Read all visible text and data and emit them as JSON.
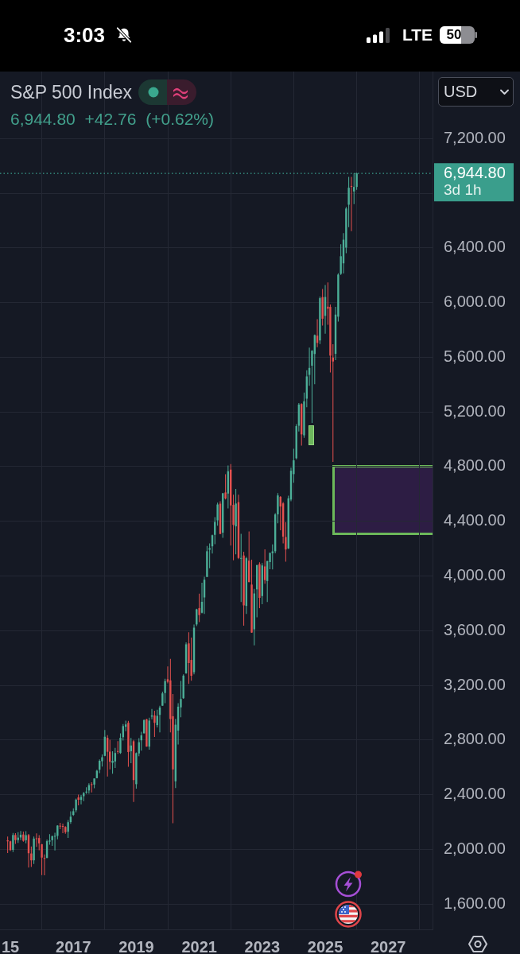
{
  "chart_data": {
    "type": "candlestick",
    "title": "S&P 500 Index",
    "subtitle": "6,944.80 +42.76 (+0.62%)",
    "x": [
      "2014-12",
      "2015-01",
      "2015-02",
      "2015-03",
      "2015-04",
      "2015-05",
      "2015-06",
      "2015-07",
      "2015-08",
      "2015-09",
      "2015-10",
      "2015-11",
      "2015-12",
      "2016-01",
      "2016-02",
      "2016-03",
      "2016-04",
      "2016-05",
      "2016-06",
      "2016-07",
      "2016-08",
      "2016-09",
      "2016-10",
      "2016-11",
      "2016-12",
      "2017-01",
      "2017-02",
      "2017-03",
      "2017-04",
      "2017-05",
      "2017-06",
      "2017-07",
      "2017-08",
      "2017-09",
      "2017-10",
      "2017-11",
      "2017-12",
      "2018-01",
      "2018-02",
      "2018-03",
      "2018-04",
      "2018-05",
      "2018-06",
      "2018-07",
      "2018-08",
      "2018-09",
      "2018-10",
      "2018-11",
      "2018-12",
      "2019-01",
      "2019-02",
      "2019-03",
      "2019-04",
      "2019-05",
      "2019-06",
      "2019-07",
      "2019-08",
      "2019-09",
      "2019-10",
      "2019-11",
      "2019-12",
      "2020-01",
      "2020-02",
      "2020-03",
      "2020-04",
      "2020-05",
      "2020-06",
      "2020-07",
      "2020-08",
      "2020-09",
      "2020-10",
      "2020-11",
      "2020-12",
      "2021-01",
      "2021-02",
      "2021-03",
      "2021-04",
      "2021-05",
      "2021-06",
      "2021-07",
      "2021-08",
      "2021-09",
      "2021-10",
      "2021-11",
      "2021-12",
      "2022-01",
      "2022-02",
      "2022-03",
      "2022-04",
      "2022-05",
      "2022-06",
      "2022-07",
      "2022-08",
      "2022-09",
      "2022-10",
      "2022-11",
      "2022-12",
      "2023-01",
      "2023-02",
      "2023-03",
      "2023-04",
      "2023-05",
      "2023-06",
      "2023-07",
      "2023-08",
      "2023-09",
      "2023-10",
      "2023-11",
      "2023-12",
      "2024-01",
      "2024-02",
      "2024-03",
      "2024-04",
      "2024-05",
      "2024-06",
      "2024-07",
      "2024-08",
      "2024-09",
      "2024-10",
      "2024-11",
      "2024-12",
      "2025-01",
      "2025-02",
      "2025-03",
      "2025-04",
      "2025-05",
      "2025-06",
      "2025-07",
      "2025-08",
      "2025-09",
      "2025-10",
      "2025-11",
      "2025-12",
      "2026-01"
    ],
    "ohlc": [
      [
        2066,
        2094,
        1973,
        2059
      ],
      [
        2059,
        2064,
        1988,
        1995
      ],
      [
        1997,
        2120,
        1981,
        2105
      ],
      [
        2105,
        2118,
        2040,
        2068
      ],
      [
        2068,
        2126,
        2048,
        2086
      ],
      [
        2087,
        2135,
        2068,
        2107
      ],
      [
        2109,
        2130,
        2056,
        2063
      ],
      [
        2067,
        2133,
        2044,
        2104
      ],
      [
        2105,
        2113,
        1867,
        1972
      ],
      [
        1970,
        2021,
        1872,
        1920
      ],
      [
        1920,
        2094,
        1894,
        2079
      ],
      [
        2081,
        2117,
        2019,
        2080
      ],
      [
        2083,
        2104,
        1993,
        2044
      ],
      [
        2038,
        2038,
        1812,
        1940
      ],
      [
        1937,
        1963,
        1810,
        1932
      ],
      [
        1937,
        2072,
        1937,
        2060
      ],
      [
        2057,
        2111,
        2034,
        2065
      ],
      [
        2067,
        2100,
        2026,
        2097
      ],
      [
        2094,
        2121,
        1992,
        2099
      ],
      [
        2099,
        2177,
        2074,
        2174
      ],
      [
        2173,
        2194,
        2148,
        2171
      ],
      [
        2171,
        2188,
        2119,
        2168
      ],
      [
        2164,
        2170,
        2115,
        2126
      ],
      [
        2129,
        2214,
        2084,
        2199
      ],
      [
        2200,
        2278,
        2187,
        2239
      ],
      [
        2252,
        2301,
        2245,
        2279
      ],
      [
        2286,
        2372,
        2272,
        2364
      ],
      [
        2380,
        2401,
        2322,
        2363
      ],
      [
        2362,
        2398,
        2329,
        2384
      ],
      [
        2389,
        2419,
        2353,
        2412
      ],
      [
        2416,
        2454,
        2406,
        2423
      ],
      [
        2431,
        2484,
        2408,
        2470
      ],
      [
        2477,
        2491,
        2417,
        2472
      ],
      [
        2474,
        2519,
        2447,
        2519
      ],
      [
        2521,
        2583,
        2520,
        2575
      ],
      [
        2583,
        2658,
        2558,
        2648
      ],
      [
        2645,
        2695,
        2606,
        2674
      ],
      [
        2684,
        2873,
        2682,
        2824
      ],
      [
        2816,
        2836,
        2533,
        2714
      ],
      [
        2715,
        2802,
        2586,
        2641
      ],
      [
        2633,
        2718,
        2554,
        2648
      ],
      [
        2643,
        2742,
        2595,
        2705
      ],
      [
        2719,
        2792,
        2699,
        2718
      ],
      [
        2705,
        2848,
        2699,
        2816
      ],
      [
        2821,
        2917,
        2796,
        2902
      ],
      [
        2897,
        2941,
        2864,
        2914
      ],
      [
        2926,
        2940,
        2604,
        2712
      ],
      [
        2718,
        2815,
        2631,
        2760
      ],
      [
        2791,
        2800,
        2347,
        2507
      ],
      [
        2477,
        2709,
        2444,
        2704
      ],
      [
        2702,
        2814,
        2682,
        2784
      ],
      [
        2798,
        2860,
        2722,
        2834
      ],
      [
        2849,
        2950,
        2849,
        2946
      ],
      [
        2952,
        2954,
        2751,
        2752
      ],
      [
        2752,
        2964,
        2729,
        2942
      ],
      [
        2971,
        3028,
        2952,
        2980
      ],
      [
        2980,
        3014,
        2822,
        2926
      ],
      [
        2909,
        3022,
        2892,
        2977
      ],
      [
        2984,
        3050,
        2856,
        3038
      ],
      [
        3051,
        3154,
        3051,
        3141
      ],
      [
        3144,
        3248,
        3070,
        3231
      ],
      [
        3245,
        3338,
        3215,
        3226
      ],
      [
        3236,
        3394,
        2856,
        2954
      ],
      [
        2974,
        3137,
        2192,
        2585
      ],
      [
        2498,
        2955,
        2448,
        2912
      ],
      [
        2869,
        3069,
        2767,
        3044
      ],
      [
        3039,
        3233,
        2966,
        3100
      ],
      [
        3106,
        3280,
        3101,
        3271
      ],
      [
        3288,
        3515,
        3285,
        3500
      ],
      [
        3507,
        3588,
        3210,
        3363
      ],
      [
        3386,
        3550,
        3234,
        3270
      ],
      [
        3296,
        3646,
        3280,
        3622
      ],
      [
        3646,
        3760,
        3633,
        3756
      ],
      [
        3765,
        3871,
        3663,
        3714
      ],
      [
        3731,
        3950,
        3726,
        3811
      ],
      [
        3843,
        3994,
        3723,
        3973
      ],
      [
        3993,
        4219,
        3993,
        4181
      ],
      [
        4192,
        4238,
        4057,
        4204
      ],
      [
        4217,
        4302,
        4164,
        4298
      ],
      [
        4301,
        4430,
        4233,
        4395
      ],
      [
        4407,
        4537,
        4368,
        4523
      ],
      [
        4529,
        4546,
        4306,
        4308
      ],
      [
        4317,
        4608,
        4279,
        4605
      ],
      [
        4611,
        4744,
        4560,
        4567
      ],
      [
        4603,
        4809,
        4495,
        4766
      ],
      [
        4778,
        4819,
        4223,
        4516
      ],
      [
        4520,
        4595,
        4115,
        4374
      ],
      [
        4363,
        4637,
        4158,
        4530
      ],
      [
        4540,
        4594,
        4124,
        4132
      ],
      [
        4131,
        4308,
        3810,
        4132
      ],
      [
        4150,
        4178,
        3637,
        3785
      ],
      [
        3781,
        4140,
        3722,
        4130
      ],
      [
        4112,
        4325,
        3955,
        3955
      ],
      [
        3937,
        4119,
        3584,
        3586
      ],
      [
        3610,
        3905,
        3492,
        3872
      ],
      [
        3902,
        4080,
        3698,
        4080
      ],
      [
        4087,
        4101,
        3765,
        3840
      ],
      [
        3853,
        4094,
        3794,
        4077
      ],
      [
        4070,
        4195,
        3943,
        3970
      ],
      [
        3963,
        4111,
        3809,
        4109
      ],
      [
        4102,
        4170,
        4049,
        4169
      ],
      [
        4167,
        4231,
        4048,
        4180
      ],
      [
        4181,
        4459,
        4166,
        4450
      ],
      [
        4451,
        4607,
        4385,
        4589
      ],
      [
        4579,
        4585,
        4335,
        4508
      ],
      [
        4531,
        4541,
        4239,
        4288
      ],
      [
        4285,
        4394,
        4104,
        4194
      ],
      [
        4201,
        4588,
        4198,
        4568
      ],
      [
        4559,
        4793,
        4547,
        4770
      ],
      [
        4745,
        4931,
        4682,
        4846
      ],
      [
        4861,
        5111,
        4853,
        5096
      ],
      [
        5099,
        5265,
        5057,
        5254
      ],
      [
        5258,
        5264,
        4954,
        5036
      ],
      [
        5029,
        5342,
        5011,
        5278
      ],
      [
        5297,
        5505,
        5234,
        5460
      ],
      [
        5471,
        5670,
        5391,
        5522
      ],
      [
        5538,
        5652,
        5119,
        5648
      ],
      [
        5624,
        5767,
        5403,
        5762
      ],
      [
        5758,
        5879,
        5674,
        5705
      ],
      [
        5723,
        6044,
        5697,
        6032
      ],
      [
        6040,
        6100,
        5832,
        5882
      ],
      [
        5903,
        6128,
        5773,
        6041
      ],
      [
        5970,
        6147,
        5838,
        5955
      ],
      [
        5968,
        5986,
        5489,
        5612
      ],
      [
        5598,
        5695,
        4835,
        5569
      ],
      [
        5625,
        5969,
        5579,
        5912
      ],
      [
        5897,
        6215,
        5861,
        6205
      ],
      [
        6210,
        6427,
        6202,
        6339
      ],
      [
        6287,
        6508,
        6213,
        6460
      ],
      [
        6402,
        6700,
        6361,
        6688
      ],
      [
        6716,
        6920,
        6552,
        6840
      ],
      [
        6853,
        6920,
        6522,
        6849
      ],
      [
        6813,
        6946,
        6720,
        6846
      ],
      [
        6846,
        6950,
        6825,
        6944.8
      ]
    ],
    "colors": [
      "#e4514f",
      "#e4514f",
      "#4caf98",
      "#e4514f",
      "#4caf98",
      "#4caf98",
      "#e4514f",
      "#4caf98",
      "#e4514f",
      "#e4514f",
      "#4caf98",
      "#e4514f",
      "#e4514f",
      "#e4514f",
      "#e4514f",
      "#4caf98",
      "#4caf98",
      "#4caf98",
      "#4caf98",
      "#4caf98",
      "#e4514f",
      "#e4514f",
      "#e4514f",
      "#4caf98",
      "#4caf98",
      "#4caf98",
      "#4caf98",
      "#e4514f",
      "#4caf98",
      "#4caf98",
      "#4caf98",
      "#4caf98",
      "#e4514f",
      "#4caf98",
      "#4caf98",
      "#4caf98",
      "#4caf98",
      "#4caf98",
      "#e4514f",
      "#e4514f",
      "#4caf98",
      "#4caf98",
      "#e4514f",
      "#4caf98",
      "#4caf98",
      "#4caf98",
      "#e4514f",
      "#4caf98",
      "#e4514f",
      "#4caf98",
      "#4caf98",
      "#4caf98",
      "#4caf98",
      "#e4514f",
      "#4caf98",
      "#4caf98",
      "#e4514f",
      "#4caf98",
      "#4caf98",
      "#4caf98",
      "#4caf98",
      "#e4514f",
      "#e4514f",
      "#e4514f",
      "#4caf98",
      "#4caf98",
      "#4caf98",
      "#4caf98",
      "#4caf98",
      "#e4514f",
      "#e4514f",
      "#4caf98",
      "#4caf98",
      "#e4514f",
      "#4caf98",
      "#4caf98",
      "#4caf98",
      "#4caf98",
      "#4caf98",
      "#4caf98",
      "#4caf98",
      "#e4514f",
      "#4caf98",
      "#e4514f",
      "#4caf98",
      "#e4514f",
      "#e4514f",
      "#4caf98",
      "#e4514f",
      "#4caf98",
      "#e4514f",
      "#4caf98",
      "#e4514f",
      "#e4514f",
      "#4caf98",
      "#4caf98",
      "#e4514f",
      "#4caf98",
      "#e4514f",
      "#4caf98",
      "#4caf98",
      "#4caf98",
      "#4caf98",
      "#4caf98",
      "#e4514f",
      "#e4514f",
      "#e4514f",
      "#4caf98",
      "#4caf98",
      "#4caf98",
      "#4caf98",
      "#4caf98",
      "#e4514f",
      "#4caf98",
      "#4caf98",
      "#4caf98",
      "#4caf98",
      "#4caf98",
      "#e4514f",
      "#4caf98",
      "#e4514f",
      "#4caf98",
      "#e4514f",
      "#e4514f",
      "#e4514f",
      "#4caf98",
      "#4caf98",
      "#4caf98",
      "#4caf98",
      "#4caf98",
      "#4caf98",
      "#e4514f",
      "#4caf98",
      "#4caf98"
    ],
    "xlim": [
      "2014-09-03",
      "2028-05-30"
    ],
    "xticks": [
      {
        "value": "2015",
        "label": "15"
      },
      "2017",
      "2019",
      "2021",
      "2023",
      "2025",
      "2027"
    ],
    "ylim": [
      1415,
      7690
    ],
    "yticks": [
      {
        "value": 1600,
        "label": "1,600.00"
      },
      {
        "value": 2000,
        "label": "2,000.00"
      },
      {
        "value": 2400,
        "label": "2,400.00"
      },
      {
        "value": 2800,
        "label": "2,800.00"
      },
      {
        "value": 3200,
        "label": "3,200.00"
      },
      {
        "value": 3600,
        "label": "3,600.00"
      },
      {
        "value": 4000,
        "label": "4,000.00"
      },
      {
        "value": 4400,
        "label": "4,400.00"
      },
      {
        "value": 4800,
        "label": "4,800.00"
      },
      {
        "value": 5200,
        "label": "5,200.00"
      },
      {
        "value": 5600,
        "label": "5,600.00"
      },
      {
        "value": 6000,
        "label": "6,000.00"
      },
      {
        "value": 6400,
        "label": "6,400.00"
      },
      {
        "value": 6800,
        "label": null
      },
      {
        "value": 7200,
        "label": "7,200.00"
      }
    ],
    "grid": true,
    "ref_lines": [
      {
        "axis": "y",
        "value": 6944.8,
        "label": "6,944.80",
        "color": "#3a9e8c",
        "line_style": "dotted"
      }
    ],
    "annotations": [
      "3d 1h",
      "USD",
      "3:03",
      "LTE",
      "50"
    ]
  }
}
